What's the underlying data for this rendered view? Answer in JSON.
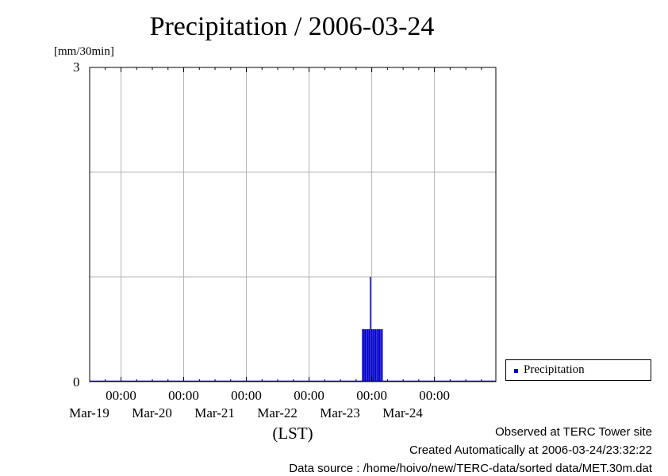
{
  "chart_data": {
    "type": "bar",
    "title": "Precipitation / 2006-03-24",
    "ylabel": "[mm/30min]",
    "xlabel": "(LST)",
    "ylim": [
      0,
      3
    ],
    "y_tick_labels": [
      "0",
      "3"
    ],
    "y_grid_values": [
      1,
      2
    ],
    "x_range": [
      "2006-03-18T12:00",
      "2006-03-24T23:30"
    ],
    "x_ticks": [
      {
        "time": "00:00",
        "date": "Mar-19"
      },
      {
        "time": "00:00",
        "date": "Mar-20"
      },
      {
        "time": "00:00",
        "date": "Mar-21"
      },
      {
        "time": "00:00",
        "date": "Mar-22"
      },
      {
        "time": "00:00",
        "date": "Mar-23"
      },
      {
        "time": "00:00",
        "date": "Mar-24"
      }
    ],
    "grid": true,
    "legend_position": "bottom-right, outside plot",
    "series": [
      {
        "name": "Precipitation",
        "color": "#0000cc",
        "points": [
          {
            "x": "2006-03-22T20:30",
            "y": 0.5
          },
          {
            "x": "2006-03-22T21:00",
            "y": 0.5
          },
          {
            "x": "2006-03-22T21:30",
            "y": 0.5
          },
          {
            "x": "2006-03-22T22:00",
            "y": 0.5
          },
          {
            "x": "2006-03-22T22:30",
            "y": 0.5
          },
          {
            "x": "2006-03-22T23:00",
            "y": 0.5
          },
          {
            "x": "2006-03-22T23:30",
            "y": 1.0
          },
          {
            "x": "2006-03-23T00:00",
            "y": 0.5
          },
          {
            "x": "2006-03-23T00:30",
            "y": 0.5
          },
          {
            "x": "2006-03-23T01:00",
            "y": 0.5
          },
          {
            "x": "2006-03-23T01:30",
            "y": 0.5
          },
          {
            "x": "2006-03-23T02:00",
            "y": 0.5
          },
          {
            "x": "2006-03-23T02:30",
            "y": 0.5
          },
          {
            "x": "2006-03-23T03:00",
            "y": 0.5
          },
          {
            "x": "2006-03-23T03:30",
            "y": 0.5
          },
          {
            "x": "2006-03-23T04:00",
            "y": 0.5
          }
        ]
      }
    ]
  },
  "footer": {
    "line1": "Observed at TERC Tower site",
    "line2": "Created Automatically at 2006-03-24/23:32:22",
    "line3": "Data source : /home/hoivo/new/TERC-data/sorted  data/MET.30m.dat"
  }
}
